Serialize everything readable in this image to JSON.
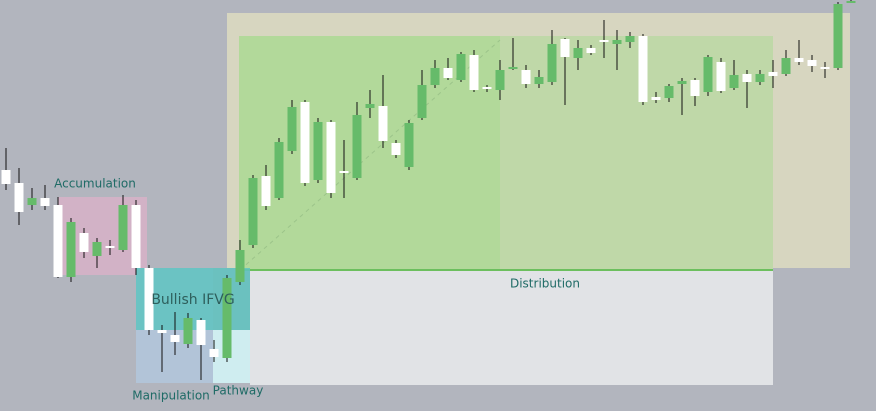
{
  "chart_data": {
    "type": "candlestick",
    "open": [
      241,
      228,
      206,
      213,
      206,
      134,
      178,
      155,
      165,
      161,
      206,
      143,
      81,
      76,
      67,
      91,
      62,
      53,
      129,
      166,
      235,
      213,
      260,
      309,
      231,
      289,
      240,
      233,
      303,
      305,
      268,
      244,
      293,
      326,
      343,
      331,
      356,
      324,
      321,
      343,
      341,
      327,
      329,
      372,
      353,
      363,
      371,
      367,
      369,
      375,
      314,
      313,
      327,
      331,
      319,
      349,
      323,
      337,
      329,
      339,
      337,
      353,
      351,
      344,
      343,
      409
    ],
    "high": [
      263,
      243,
      223,
      226,
      214,
      193,
      183,
      173,
      171,
      216,
      211,
      146,
      86,
      99,
      98,
      93,
      71,
      136,
      171,
      236,
      246,
      273,
      311,
      311,
      293,
      291,
      271,
      309,
      321,
      336,
      271,
      291,
      341,
      351,
      353,
      359,
      361,
      326,
      351,
      373,
      346,
      341,
      381,
      373,
      371,
      366,
      391,
      381,
      379,
      377,
      319,
      327,
      333,
      333,
      356,
      353,
      351,
      341,
      341,
      351,
      361,
      371,
      356,
      349,
      409,
      411
    ],
    "low": [
      221,
      186,
      201,
      201,
      133,
      129,
      153,
      143,
      156,
      159,
      136,
      76,
      39,
      56,
      63,
      31,
      49,
      49,
      126,
      163,
      201,
      211,
      257,
      225,
      228,
      213,
      213,
      231,
      293,
      263,
      253,
      241,
      291,
      323,
      331,
      329,
      319,
      319,
      311,
      341,
      323,
      323,
      326,
      306,
      341,
      356,
      353,
      341,
      363,
      306,
      308,
      309,
      296,
      305,
      315,
      318,
      321,
      303,
      326,
      323,
      335,
      346,
      339,
      333,
      341,
      408
    ],
    "close": [
      227,
      199,
      213,
      205,
      134,
      189,
      159,
      169,
      163,
      206,
      143,
      81,
      78,
      69,
      93,
      66,
      54,
      133,
      161,
      233,
      205,
      269,
      304,
      228,
      289,
      218,
      238,
      296,
      307,
      270,
      256,
      288,
      326,
      343,
      333,
      357,
      321,
      322,
      341,
      344,
      327,
      334,
      367,
      354,
      363,
      358,
      369,
      371,
      375,
      309,
      311,
      325,
      330,
      315,
      354,
      320,
      336,
      329,
      337,
      335,
      353,
      349,
      345,
      342,
      407,
      410
    ],
    "up_color": "#66bb6a",
    "down_color": "#ffffff",
    "ylim": [
      0,
      411
    ],
    "annotations": [
      "Accumulation",
      "Bullish IFVG",
      "Manipulation",
      "Pathway",
      "Distribution"
    ]
  }
}
